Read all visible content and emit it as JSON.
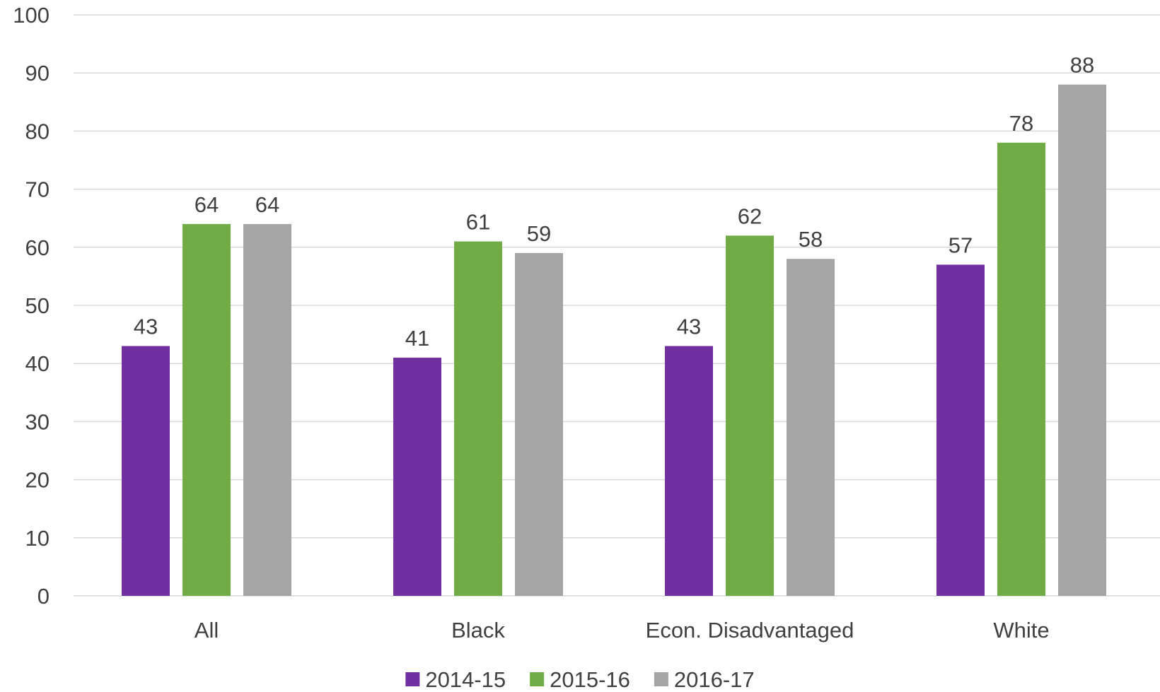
{
  "chart_data": {
    "type": "bar",
    "title": "",
    "xlabel": "",
    "ylabel": "",
    "ylim": [
      0,
      100
    ],
    "yticks": [
      0,
      10,
      20,
      30,
      40,
      50,
      60,
      70,
      80,
      90,
      100
    ],
    "grid": true,
    "legend_position": "bottom",
    "categories": [
      "All",
      "Black",
      "Econ. Disadvantaged",
      "White"
    ],
    "series": [
      {
        "name": "2014-15",
        "color": "#7030a0",
        "values": [
          43,
          41,
          43,
          57
        ]
      },
      {
        "name": "2015-16",
        "color": "#70ad47",
        "values": [
          64,
          61,
          62,
          78
        ]
      },
      {
        "name": "2016-17",
        "color": "#a5a5a5",
        "values": [
          64,
          59,
          58,
          88
        ]
      }
    ]
  }
}
